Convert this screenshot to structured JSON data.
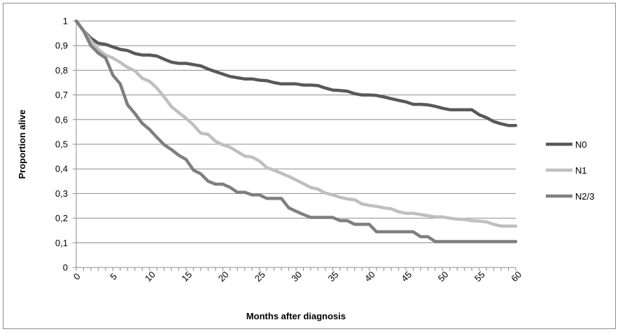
{
  "chart_data": {
    "type": "line",
    "xlabel": "Months after diagnosis",
    "ylabel": "Proportion alive",
    "xlim": [
      0,
      60
    ],
    "ylim": [
      0,
      1
    ],
    "x_ticks": [
      "0",
      "5",
      "10",
      "15",
      "20",
      "25",
      "30",
      "35",
      "40",
      "45",
      "50",
      "55",
      "60"
    ],
    "y_ticks": [
      "0",
      "0,1",
      "0,2",
      "0,3",
      "0,4",
      "0,5",
      "0,6",
      "0,7",
      "0,8",
      "0,9",
      "1"
    ],
    "grid": "horizontal",
    "legend_position": "right",
    "series": [
      {
        "name": "N0",
        "color": "#595959",
        "points": [
          [
            0,
            1
          ],
          [
            1,
            0.96
          ],
          [
            2,
            0.93
          ],
          [
            3,
            0.91
          ],
          [
            4,
            0.905
          ],
          [
            5,
            0.895
          ],
          [
            6,
            0.885
          ],
          [
            7,
            0.88
          ],
          [
            8,
            0.868
          ],
          [
            9,
            0.862
          ],
          [
            10,
            0.862
          ],
          [
            11,
            0.858
          ],
          [
            12,
            0.845
          ],
          [
            13,
            0.833
          ],
          [
            14,
            0.828
          ],
          [
            15,
            0.828
          ],
          [
            16,
            0.823
          ],
          [
            17,
            0.818
          ],
          [
            18,
            0.805
          ],
          [
            19,
            0.795
          ],
          [
            20,
            0.785
          ],
          [
            21,
            0.775
          ],
          [
            22,
            0.77
          ],
          [
            23,
            0.765
          ],
          [
            24,
            0.765
          ],
          [
            25,
            0.76
          ],
          [
            26,
            0.758
          ],
          [
            27,
            0.75
          ],
          [
            28,
            0.745
          ],
          [
            29,
            0.745
          ],
          [
            30,
            0.745
          ],
          [
            31,
            0.74
          ],
          [
            32,
            0.74
          ],
          [
            33,
            0.738
          ],
          [
            34,
            0.728
          ],
          [
            35,
            0.72
          ],
          [
            36,
            0.718
          ],
          [
            37,
            0.715
          ],
          [
            38,
            0.705
          ],
          [
            39,
            0.7
          ],
          [
            40,
            0.7
          ],
          [
            41,
            0.698
          ],
          [
            42,
            0.692
          ],
          [
            43,
            0.685
          ],
          [
            44,
            0.678
          ],
          [
            45,
            0.672
          ],
          [
            46,
            0.662
          ],
          [
            47,
            0.662
          ],
          [
            48,
            0.66
          ],
          [
            49,
            0.654
          ],
          [
            50,
            0.646
          ],
          [
            51,
            0.64
          ],
          [
            52,
            0.64
          ],
          [
            53,
            0.64
          ],
          [
            54,
            0.64
          ],
          [
            55,
            0.62
          ],
          [
            56,
            0.608
          ],
          [
            57,
            0.592
          ],
          [
            58,
            0.583
          ],
          [
            59,
            0.576
          ],
          [
            60,
            0.576
          ]
        ]
      },
      {
        "name": "N1",
        "color": "#bfbfbf",
        "points": [
          [
            0,
            1
          ],
          [
            1,
            0.96
          ],
          [
            2,
            0.92
          ],
          [
            3,
            0.885
          ],
          [
            4,
            0.862
          ],
          [
            5,
            0.85
          ],
          [
            6,
            0.832
          ],
          [
            7,
            0.812
          ],
          [
            8,
            0.798
          ],
          [
            9,
            0.768
          ],
          [
            10,
            0.755
          ],
          [
            11,
            0.728
          ],
          [
            12,
            0.692
          ],
          [
            13,
            0.652
          ],
          [
            14,
            0.628
          ],
          [
            15,
            0.605
          ],
          [
            16,
            0.578
          ],
          [
            17,
            0.545
          ],
          [
            18,
            0.54
          ],
          [
            19,
            0.512
          ],
          [
            20,
            0.498
          ],
          [
            21,
            0.488
          ],
          [
            22,
            0.47
          ],
          [
            23,
            0.452
          ],
          [
            24,
            0.448
          ],
          [
            25,
            0.432
          ],
          [
            26,
            0.405
          ],
          [
            27,
            0.395
          ],
          [
            28,
            0.382
          ],
          [
            29,
            0.37
          ],
          [
            30,
            0.355
          ],
          [
            31,
            0.34
          ],
          [
            32,
            0.325
          ],
          [
            33,
            0.318
          ],
          [
            34,
            0.302
          ],
          [
            35,
            0.295
          ],
          [
            36,
            0.285
          ],
          [
            37,
            0.278
          ],
          [
            38,
            0.275
          ],
          [
            39,
            0.258
          ],
          [
            40,
            0.252
          ],
          [
            41,
            0.248
          ],
          [
            42,
            0.242
          ],
          [
            43,
            0.238
          ],
          [
            44,
            0.226
          ],
          [
            45,
            0.22
          ],
          [
            46,
            0.22
          ],
          [
            47,
            0.215
          ],
          [
            48,
            0.21
          ],
          [
            49,
            0.205
          ],
          [
            50,
            0.205
          ],
          [
            51,
            0.2
          ],
          [
            52,
            0.196
          ],
          [
            53,
            0.195
          ],
          [
            54,
            0.19
          ],
          [
            55,
            0.188
          ],
          [
            56,
            0.185
          ],
          [
            57,
            0.175
          ],
          [
            58,
            0.168
          ],
          [
            59,
            0.168
          ],
          [
            60,
            0.168
          ]
        ]
      },
      {
        "name": "N2/3",
        "color": "#7f7f7f",
        "points": [
          [
            0,
            1
          ],
          [
            1,
            0.96
          ],
          [
            2,
            0.9
          ],
          [
            3,
            0.87
          ],
          [
            4,
            0.85
          ],
          [
            5,
            0.78
          ],
          [
            6,
            0.745
          ],
          [
            7,
            0.66
          ],
          [
            8,
            0.625
          ],
          [
            9,
            0.585
          ],
          [
            10,
            0.56
          ],
          [
            11,
            0.528
          ],
          [
            12,
            0.498
          ],
          [
            13,
            0.478
          ],
          [
            14,
            0.455
          ],
          [
            15,
            0.438
          ],
          [
            16,
            0.395
          ],
          [
            17,
            0.38
          ],
          [
            18,
            0.35
          ],
          [
            19,
            0.338
          ],
          [
            20,
            0.338
          ],
          [
            21,
            0.325
          ],
          [
            22,
            0.305
          ],
          [
            23,
            0.305
          ],
          [
            24,
            0.295
          ],
          [
            25,
            0.295
          ],
          [
            26,
            0.28
          ],
          [
            27,
            0.28
          ],
          [
            28,
            0.28
          ],
          [
            29,
            0.242
          ],
          [
            30,
            0.228
          ],
          [
            31,
            0.215
          ],
          [
            32,
            0.203
          ],
          [
            33,
            0.203
          ],
          [
            34,
            0.203
          ],
          [
            35,
            0.203
          ],
          [
            36,
            0.19
          ],
          [
            37,
            0.19
          ],
          [
            38,
            0.175
          ],
          [
            39,
            0.175
          ],
          [
            40,
            0.175
          ],
          [
            41,
            0.145
          ],
          [
            42,
            0.145
          ],
          [
            43,
            0.145
          ],
          [
            44,
            0.145
          ],
          [
            45,
            0.145
          ],
          [
            46,
            0.145
          ],
          [
            47,
            0.125
          ],
          [
            48,
            0.125
          ],
          [
            49,
            0.105
          ],
          [
            50,
            0.105
          ],
          [
            51,
            0.105
          ],
          [
            52,
            0.105
          ],
          [
            53,
            0.105
          ],
          [
            54,
            0.105
          ],
          [
            55,
            0.105
          ],
          [
            56,
            0.105
          ],
          [
            57,
            0.105
          ],
          [
            58,
            0.105
          ],
          [
            59,
            0.105
          ],
          [
            60,
            0.105
          ]
        ]
      }
    ]
  }
}
